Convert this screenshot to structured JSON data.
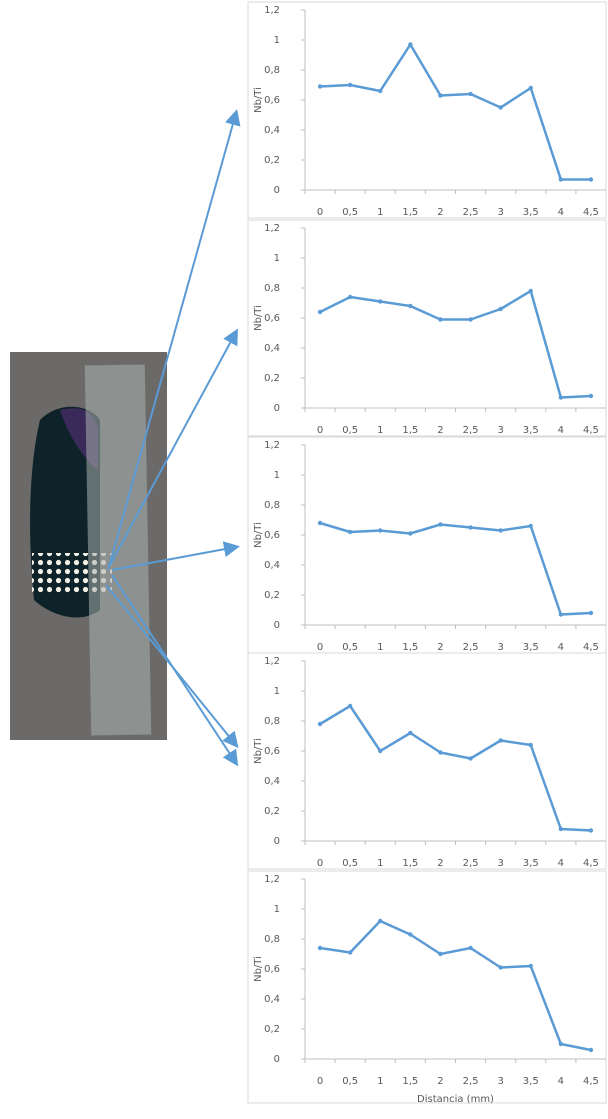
{
  "chart_data": [
    {
      "type": "line",
      "ylabel": "Nb/Ti",
      "categories": [
        "0",
        "0,5",
        "1",
        "1,5",
        "2",
        "2,5",
        "3",
        "3,5",
        "4",
        "4,5"
      ],
      "values": [
        0.69,
        0.7,
        0.66,
        0.97,
        0.63,
        0.64,
        0.55,
        0.68,
        0.07,
        0.07
      ],
      "color": "#5b9bd5",
      "ylim": [
        0,
        1.2
      ],
      "yticks": [
        0,
        {
          "value": 0.2,
          "label": "0,2"
        },
        {
          "value": 0.4,
          "label": "0,4"
        },
        {
          "value": 0.6,
          "label": "0,6"
        },
        {
          "value": 0.8,
          "label": "0,8"
        },
        1,
        {
          "value": 1.2,
          "label": "1,2"
        }
      ]
    },
    {
      "type": "line",
      "ylabel": "Nb/Ti",
      "categories": [
        "0",
        "0,5",
        "1",
        "1,5",
        "2",
        "2,5",
        "3",
        "3,5",
        "4",
        "4,5"
      ],
      "values": [
        0.64,
        0.74,
        0.71,
        0.68,
        0.59,
        0.59,
        0.66,
        0.78,
        0.07,
        0.08
      ],
      "color": "#5b9bd5",
      "ylim": [
        0,
        1.2
      ],
      "yticks": [
        0,
        {
          "value": 0.2,
          "label": "0,2"
        },
        {
          "value": 0.4,
          "label": "0,4"
        },
        {
          "value": 0.6,
          "label": "0,6"
        },
        {
          "value": 0.8,
          "label": "0,8"
        },
        1,
        {
          "value": 1.2,
          "label": "1,2"
        }
      ]
    },
    {
      "type": "line",
      "ylabel": "Nb/Ti",
      "categories": [
        "0",
        "0,5",
        "1",
        "1,5",
        "2",
        "2,5",
        "3",
        "3,5",
        "4",
        "4,5"
      ],
      "values": [
        0.68,
        0.62,
        0.63,
        0.61,
        0.67,
        0.65,
        0.63,
        0.66,
        0.07,
        0.08
      ],
      "color": "#5b9bd5",
      "ylim": [
        0,
        1.2
      ],
      "yticks": [
        0,
        {
          "value": 0.2,
          "label": "0,2"
        },
        {
          "value": 0.4,
          "label": "0,4"
        },
        {
          "value": 0.6,
          "label": "0,6"
        },
        {
          "value": 0.8,
          "label": "0,8"
        },
        1,
        {
          "value": 1.2,
          "label": "1,2"
        }
      ]
    },
    {
      "type": "line",
      "ylabel": "Nb/Ti",
      "categories": [
        "0",
        "0,5",
        "1",
        "1,5",
        "2",
        "2,5",
        "3",
        "3,5",
        "4",
        "4,5"
      ],
      "values": [
        0.78,
        0.9,
        0.6,
        0.72,
        0.59,
        0.55,
        0.67,
        0.64,
        0.08,
        0.07
      ],
      "color": "#5b9bd5",
      "ylim": [
        0,
        1.2
      ],
      "yticks": [
        0,
        {
          "value": 0.2,
          "label": "0,2"
        },
        {
          "value": 0.4,
          "label": "0,4"
        },
        {
          "value": 0.6,
          "label": "0,6"
        },
        {
          "value": 0.8,
          "label": "0,8"
        },
        1,
        {
          "value": 1.2,
          "label": "1,2"
        }
      ]
    },
    {
      "type": "line",
      "ylabel": "Nb/Ti",
      "xlabel": "Distancia (mm)",
      "categories": [
        "0",
        "0,5",
        "1",
        "1,5",
        "2",
        "2,5",
        "3",
        "3,5",
        "4",
        "4,5"
      ],
      "values": [
        0.74,
        0.71,
        0.92,
        0.83,
        0.7,
        0.74,
        0.61,
        0.62,
        0.1,
        0.06
      ],
      "color": "#5b9bd5",
      "ylim": [
        0,
        1.2
      ],
      "yticks": [
        0,
        {
          "value": 0.2,
          "label": "0,2"
        },
        {
          "value": 0.4,
          "label": "0,4"
        },
        {
          "value": 0.6,
          "label": "0,6"
        },
        {
          "value": 0.8,
          "label": "0,8"
        },
        1,
        {
          "value": 1.2,
          "label": "1,2"
        }
      ]
    }
  ]
}
